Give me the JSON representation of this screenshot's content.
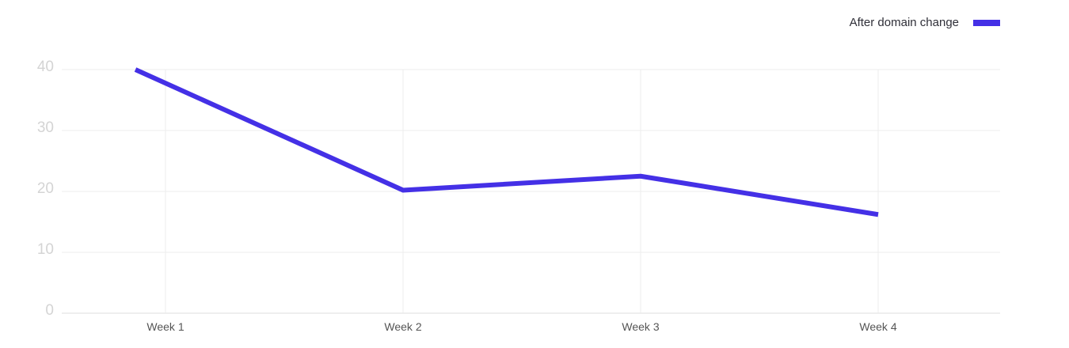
{
  "chart_data": {
    "type": "line",
    "categories": [
      "Week 1",
      "Week 2",
      "Week 3",
      "Week 4"
    ],
    "series": [
      {
        "name": "After domain change",
        "values": [
          40,
          20.2,
          22.5,
          16.2
        ],
        "color": "#4430e6"
      }
    ],
    "ylim": [
      0,
      40
    ],
    "yticks": [
      "0",
      "10",
      "20",
      "30",
      "40"
    ],
    "grid": true,
    "legend_position": "top-right"
  }
}
